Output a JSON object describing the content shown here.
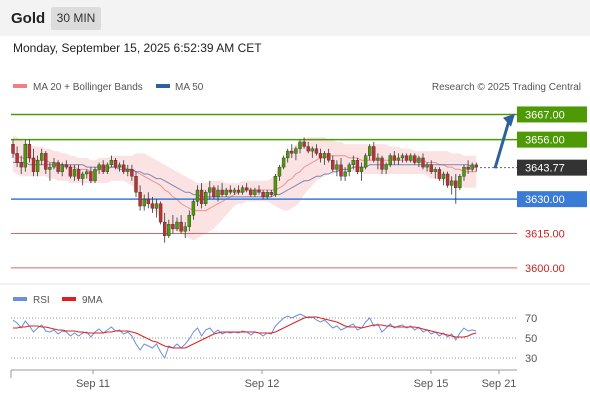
{
  "header": {
    "asset": "Gold",
    "timeframe": "30 MIN",
    "datetime": "Monday, September 15, 2025 6:52:39 AM CET"
  },
  "legend": {
    "ma20_bb": "MA 20 + Bollinger Bands",
    "ma50": "MA 50",
    "credit": "Research © 2025 Trading Central",
    "rsi": "RSI",
    "rsi_ma": "9MA"
  },
  "colors": {
    "resistance": "#4d9a06",
    "support": "#3a7bd5",
    "level_red": "#e06060",
    "ma20_legend": "#f08080",
    "bollinger_fill": "#fbd9d9",
    "ma20_line": "#f09090",
    "ma50": "#5a6ea8",
    "candle_up": "#4d9a06",
    "candle_down": "#c03030",
    "arrow": "#2e5f9e",
    "price_tag": "#333333",
    "rsi_line": "#6a8fdc",
    "rsi_ma_line": "#e02020"
  },
  "chart_data": {
    "type": "candlestick",
    "price_axis": {
      "ylim": [
        3596,
        3672
      ]
    },
    "x_axis": {
      "labels": [
        "Sep 11",
        "Sep 12",
        "Sep 15",
        "Sep 21"
      ],
      "label_positions": [
        6,
        110,
        210,
        252
      ]
    },
    "current_price": {
      "label": "3643.77",
      "value": 3643.77
    },
    "levels": [
      {
        "label": "3667.00",
        "value": 3667.0,
        "kind": "resistance"
      },
      {
        "label": "3656.00",
        "value": 3656.0,
        "kind": "resistance"
      },
      {
        "label": "3630.00",
        "value": 3630.0,
        "kind": "support"
      },
      {
        "label": "3615.00",
        "value": 3615.0,
        "kind": "red"
      },
      {
        "label": "3600.00",
        "value": 3600.0,
        "kind": "red"
      }
    ],
    "forecast_arrow": {
      "from": [
        282,
        3643.5
      ],
      "to": [
        322,
        3666
      ]
    },
    "candles": [
      [
        3654,
        3656,
        3648,
        3650
      ],
      [
        3650,
        3653,
        3644,
        3646
      ],
      [
        3646,
        3649,
        3641,
        3644
      ],
      [
        3644,
        3656,
        3642,
        3654
      ],
      [
        3654,
        3656,
        3646,
        3648
      ],
      [
        3648,
        3652,
        3640,
        3642
      ],
      [
        3642,
        3649,
        3640,
        3647
      ],
      [
        3647,
        3652,
        3645,
        3650
      ],
      [
        3650,
        3651,
        3641,
        3643
      ],
      [
        3643,
        3646,
        3638,
        3644
      ],
      [
        3644,
        3648,
        3643,
        3646
      ],
      [
        3646,
        3647,
        3641,
        3642
      ],
      [
        3642,
        3646,
        3640,
        3645
      ],
      [
        3645,
        3647,
        3643,
        3644
      ],
      [
        3644,
        3645,
        3639,
        3640
      ],
      [
        3640,
        3645,
        3638,
        3643
      ],
      [
        3643,
        3645,
        3638,
        3639
      ],
      [
        3639,
        3642,
        3636,
        3641
      ],
      [
        3641,
        3643,
        3639,
        3642
      ],
      [
        3642,
        3644,
        3637,
        3638
      ],
      [
        3638,
        3644,
        3637,
        3643
      ],
      [
        3643,
        3646,
        3641,
        3645
      ],
      [
        3645,
        3647,
        3641,
        3642
      ],
      [
        3642,
        3646,
        3641,
        3645
      ],
      [
        3645,
        3649,
        3644,
        3647
      ],
      [
        3647,
        3648,
        3643,
        3644
      ],
      [
        3644,
        3646,
        3642,
        3645
      ],
      [
        3645,
        3647,
        3641,
        3642
      ],
      [
        3642,
        3645,
        3640,
        3643
      ],
      [
        3643,
        3645,
        3638,
        3640
      ],
      [
        3640,
        3642,
        3631,
        3633
      ],
      [
        3633,
        3636,
        3625,
        3627
      ],
      [
        3627,
        3632,
        3625,
        3630
      ],
      [
        3630,
        3633,
        3626,
        3628
      ],
      [
        3628,
        3631,
        3624,
        3626
      ],
      [
        3626,
        3630,
        3622,
        3628
      ],
      [
        3628,
        3629,
        3619,
        3620
      ],
      [
        3620,
        3624,
        3611,
        3614
      ],
      [
        3614,
        3621,
        3613,
        3619
      ],
      [
        3619,
        3623,
        3615,
        3617
      ],
      [
        3617,
        3622,
        3616,
        3620
      ],
      [
        3620,
        3623,
        3615,
        3616
      ],
      [
        3616,
        3620,
        3613,
        3618
      ],
      [
        3618,
        3625,
        3616,
        3623
      ],
      [
        3623,
        3630,
        3621,
        3629
      ],
      [
        3629,
        3636,
        3627,
        3634
      ],
      [
        3634,
        3637,
        3626,
        3628
      ],
      [
        3628,
        3634,
        3627,
        3633
      ],
      [
        3633,
        3638,
        3630,
        3635
      ],
      [
        3635,
        3636,
        3630,
        3631
      ],
      [
        3631,
        3636,
        3629,
        3634
      ],
      [
        3634,
        3637,
        3631,
        3632
      ],
      [
        3632,
        3635,
        3631,
        3634
      ],
      [
        3634,
        3636,
        3632,
        3633
      ],
      [
        3633,
        3635,
        3632,
        3634
      ],
      [
        3634,
        3636,
        3632,
        3633
      ],
      [
        3633,
        3636,
        3632,
        3635
      ],
      [
        3635,
        3637,
        3633,
        3634
      ],
      [
        3634,
        3635,
        3631,
        3632
      ],
      [
        3632,
        3635,
        3631,
        3634
      ],
      [
        3634,
        3636,
        3632,
        3633
      ],
      [
        3633,
        3634,
        3630,
        3631
      ],
      [
        3631,
        3634,
        3630,
        3633
      ],
      [
        3633,
        3634,
        3631,
        3632
      ],
      [
        3632,
        3641,
        3631,
        3640
      ],
      [
        3640,
        3645,
        3638,
        3644
      ],
      [
        3644,
        3649,
        3643,
        3648
      ],
      [
        3648,
        3652,
        3646,
        3651
      ],
      [
        3651,
        3654,
        3648,
        3650
      ],
      [
        3650,
        3653,
        3647,
        3652
      ],
      [
        3652,
        3656,
        3650,
        3655
      ],
      [
        3655,
        3657,
        3652,
        3653
      ],
      [
        3653,
        3655,
        3650,
        3651
      ],
      [
        3651,
        3653,
        3648,
        3652
      ],
      [
        3652,
        3654,
        3649,
        3650
      ],
      [
        3650,
        3652,
        3646,
        3648
      ],
      [
        3648,
        3651,
        3645,
        3650
      ],
      [
        3650,
        3652,
        3646,
        3647
      ],
      [
        3647,
        3649,
        3642,
        3643
      ],
      [
        3643,
        3647,
        3640,
        3645
      ],
      [
        3645,
        3648,
        3638,
        3640
      ],
      [
        3640,
        3644,
        3638,
        3642
      ],
      [
        3642,
        3646,
        3640,
        3645
      ],
      [
        3645,
        3649,
        3643,
        3647
      ],
      [
        3647,
        3648,
        3641,
        3642
      ],
      [
        3642,
        3646,
        3638,
        3644
      ],
      [
        3644,
        3650,
        3643,
        3649
      ],
      [
        3649,
        3654,
        3647,
        3653
      ],
      [
        3653,
        3655,
        3646,
        3647
      ],
      [
        3647,
        3650,
        3643,
        3648
      ],
      [
        3648,
        3649,
        3641,
        3643
      ],
      [
        3643,
        3646,
        3641,
        3645
      ],
      [
        3645,
        3650,
        3644,
        3649
      ],
      [
        3649,
        3651,
        3645,
        3647
      ],
      [
        3647,
        3650,
        3645,
        3648
      ],
      [
        3648,
        3650,
        3646,
        3649
      ],
      [
        3649,
        3650,
        3646,
        3647
      ],
      [
        3647,
        3650,
        3646,
        3649
      ],
      [
        3649,
        3650,
        3645,
        3646
      ],
      [
        3646,
        3649,
        3644,
        3648
      ],
      [
        3648,
        3650,
        3643,
        3644
      ],
      [
        3644,
        3646,
        3642,
        3645
      ],
      [
        3645,
        3647,
        3641,
        3642
      ],
      [
        3642,
        3644,
        3639,
        3643
      ],
      [
        3643,
        3644,
        3638,
        3639
      ],
      [
        3639,
        3642,
        3636,
        3641
      ],
      [
        3641,
        3642,
        3635,
        3636
      ],
      [
        3636,
        3640,
        3632,
        3638
      ],
      [
        3638,
        3641,
        3628,
        3635
      ],
      [
        3635,
        3641,
        3634,
        3640
      ],
      [
        3640,
        3645,
        3638,
        3644
      ],
      [
        3644,
        3647,
        3641,
        3643
      ],
      [
        3643,
        3646,
        3642,
        3645
      ],
      [
        3645,
        3646,
        3642,
        3644
      ]
    ],
    "ma20": [
      3650,
      3649,
      3648,
      3648,
      3648,
      3647,
      3647,
      3647,
      3647,
      3646,
      3646,
      3645,
      3645,
      3645,
      3644,
      3644,
      3643,
      3643,
      3643,
      3642,
      3642,
      3643,
      3643,
      3643,
      3644,
      3644,
      3644,
      3644,
      3643,
      3643,
      3642,
      3641,
      3640,
      3639,
      3638,
      3637,
      3636,
      3634,
      3633,
      3631,
      3630,
      3628,
      3627,
      3626,
      3625,
      3625,
      3625,
      3625,
      3626,
      3627,
      3628,
      3629,
      3630,
      3631,
      3632,
      3633,
      3633,
      3634,
      3634,
      3634,
      3634,
      3634,
      3634,
      3634,
      3634,
      3635,
      3636,
      3638,
      3639,
      3641,
      3642,
      3644,
      3645,
      3646,
      3647,
      3648,
      3648,
      3649,
      3649,
      3649,
      3649,
      3649,
      3648,
      3648,
      3648,
      3647,
      3647,
      3647,
      3647,
      3647,
      3647,
      3647,
      3647,
      3647,
      3647,
      3647,
      3647,
      3647,
      3647,
      3647,
      3647,
      3646,
      3646,
      3646,
      3645,
      3645,
      3644,
      3644,
      3643,
      3643,
      3642,
      3642,
      3642,
      3642
    ],
    "bb_upper": [
      3658,
      3657,
      3656,
      3655,
      3654,
      3653,
      3653,
      3653,
      3652,
      3652,
      3651,
      3651,
      3650,
      3650,
      3649,
      3649,
      3648,
      3648,
      3648,
      3647,
      3647,
      3648,
      3648,
      3648,
      3649,
      3649,
      3649,
      3649,
      3649,
      3649,
      3650,
      3650,
      3650,
      3649,
      3648,
      3647,
      3646,
      3645,
      3644,
      3643,
      3642,
      3641,
      3640,
      3639,
      3638,
      3637,
      3637,
      3637,
      3638,
      3638,
      3638,
      3638,
      3637,
      3637,
      3637,
      3637,
      3638,
      3638,
      3638,
      3638,
      3638,
      3638,
      3638,
      3639,
      3641,
      3644,
      3647,
      3650,
      3652,
      3654,
      3655,
      3656,
      3657,
      3657,
      3657,
      3657,
      3657,
      3656,
      3656,
      3655,
      3655,
      3654,
      3654,
      3654,
      3654,
      3654,
      3654,
      3654,
      3654,
      3654,
      3654,
      3654,
      3653,
      3653,
      3653,
      3652,
      3652,
      3652,
      3651,
      3651,
      3651,
      3651,
      3651,
      3651,
      3651,
      3651,
      3651,
      3650,
      3650,
      3650,
      3649,
      3649,
      3649,
      3649
    ],
    "bb_lower": [
      3642,
      3641,
      3640,
      3640,
      3640,
      3640,
      3640,
      3640,
      3640,
      3639,
      3639,
      3638,
      3638,
      3638,
      3637,
      3637,
      3637,
      3637,
      3637,
      3637,
      3637,
      3637,
      3637,
      3637,
      3638,
      3638,
      3638,
      3638,
      3637,
      3636,
      3634,
      3632,
      3630,
      3628,
      3626,
      3624,
      3622,
      3620,
      3618,
      3617,
      3616,
      3615,
      3614,
      3613,
      3612,
      3613,
      3614,
      3615,
      3616,
      3617,
      3619,
      3621,
      3623,
      3625,
      3627,
      3628,
      3628,
      3629,
      3629,
      3629,
      3629,
      3629,
      3629,
      3628,
      3627,
      3626,
      3625,
      3625,
      3626,
      3627,
      3629,
      3632,
      3634,
      3636,
      3638,
      3639,
      3640,
      3641,
      3641,
      3642,
      3642,
      3643,
      3642,
      3642,
      3642,
      3641,
      3641,
      3641,
      3641,
      3641,
      3641,
      3641,
      3641,
      3641,
      3641,
      3641,
      3641,
      3641,
      3641,
      3641,
      3641,
      3640,
      3639,
      3639,
      3638,
      3638,
      3637,
      3637,
      3636,
      3636,
      3635,
      3635,
      3635,
      3635
    ],
    "ma50": [
      3646,
      3646,
      3646,
      3646,
      3645,
      3645,
      3645,
      3645,
      3645,
      3645,
      3645,
      3645,
      3645,
      3645,
      3645,
      3645,
      3645,
      3645,
      3644,
      3644,
      3644,
      3644,
      3644,
      3644,
      3644,
      3644,
      3643,
      3643,
      3643,
      3643,
      3642,
      3642,
      3641,
      3641,
      3640,
      3639,
      3639,
      3638,
      3637,
      3636,
      3635,
      3634,
      3633,
      3633,
      3632,
      3632,
      3631,
      3631,
      3631,
      3631,
      3631,
      3631,
      3631,
      3631,
      3631,
      3631,
      3631,
      3631,
      3631,
      3631,
      3631,
      3631,
      3631,
      3631,
      3632,
      3632,
      3633,
      3634,
      3635,
      3636,
      3637,
      3638,
      3638,
      3639,
      3640,
      3640,
      3641,
      3641,
      3642,
      3642,
      3643,
      3643,
      3643,
      3644,
      3644,
      3644,
      3644,
      3645,
      3645,
      3645,
      3645,
      3645,
      3645,
      3645,
      3645,
      3645,
      3645,
      3645,
      3645,
      3645,
      3645,
      3645,
      3645,
      3645,
      3645,
      3645,
      3645,
      3645,
      3645,
      3645,
      3645,
      3645,
      3644,
      3644
    ],
    "rsi_panel": {
      "ylim": [
        20,
        80
      ],
      "ticks": [
        70,
        50,
        30
      ],
      "rsi": [
        68,
        65,
        60,
        67,
        62,
        56,
        60,
        63,
        57,
        56,
        58,
        54,
        57,
        56,
        52,
        55,
        52,
        55,
        56,
        51,
        56,
        59,
        55,
        58,
        61,
        57,
        58,
        54,
        56,
        52,
        44,
        38,
        44,
        42,
        40,
        44,
        36,
        30,
        42,
        40,
        44,
        40,
        44,
        49,
        56,
        60,
        52,
        58,
        60,
        55,
        58,
        54,
        56,
        55,
        56,
        55,
        57,
        56,
        53,
        56,
        55,
        52,
        55,
        54,
        62,
        66,
        70,
        72,
        70,
        72,
        74,
        72,
        70,
        71,
        68,
        66,
        68,
        64,
        60,
        62,
        58,
        60,
        62,
        64,
        58,
        60,
        66,
        70,
        62,
        64,
        56,
        60,
        64,
        60,
        62,
        63,
        60,
        62,
        58,
        61,
        56,
        58,
        54,
        56,
        52,
        55,
        51,
        54,
        48,
        55,
        60,
        57,
        58,
        57
      ],
      "ma9": [
        60,
        60,
        61,
        61,
        62,
        62,
        62,
        61,
        61,
        60,
        59,
        58,
        58,
        57,
        57,
        57,
        56,
        56,
        55,
        55,
        55,
        55,
        55,
        56,
        56,
        57,
        57,
        57,
        57,
        56,
        55,
        53,
        51,
        49,
        47,
        46,
        44,
        42,
        41,
        40,
        40,
        40,
        40,
        42,
        44,
        46,
        48,
        50,
        52,
        54,
        55,
        56,
        56,
        56,
        56,
        56,
        56,
        56,
        56,
        56,
        55,
        55,
        55,
        55,
        56,
        58,
        60,
        62,
        64,
        66,
        68,
        70,
        71,
        71,
        71,
        70,
        69,
        68,
        67,
        66,
        64,
        62,
        61,
        61,
        61,
        60,
        61,
        62,
        63,
        63,
        63,
        62,
        62,
        61,
        61,
        61,
        61,
        61,
        61,
        60,
        59,
        58,
        57,
        56,
        55,
        54,
        53,
        52,
        51,
        51,
        51,
        52,
        54,
        55
      ]
    }
  }
}
